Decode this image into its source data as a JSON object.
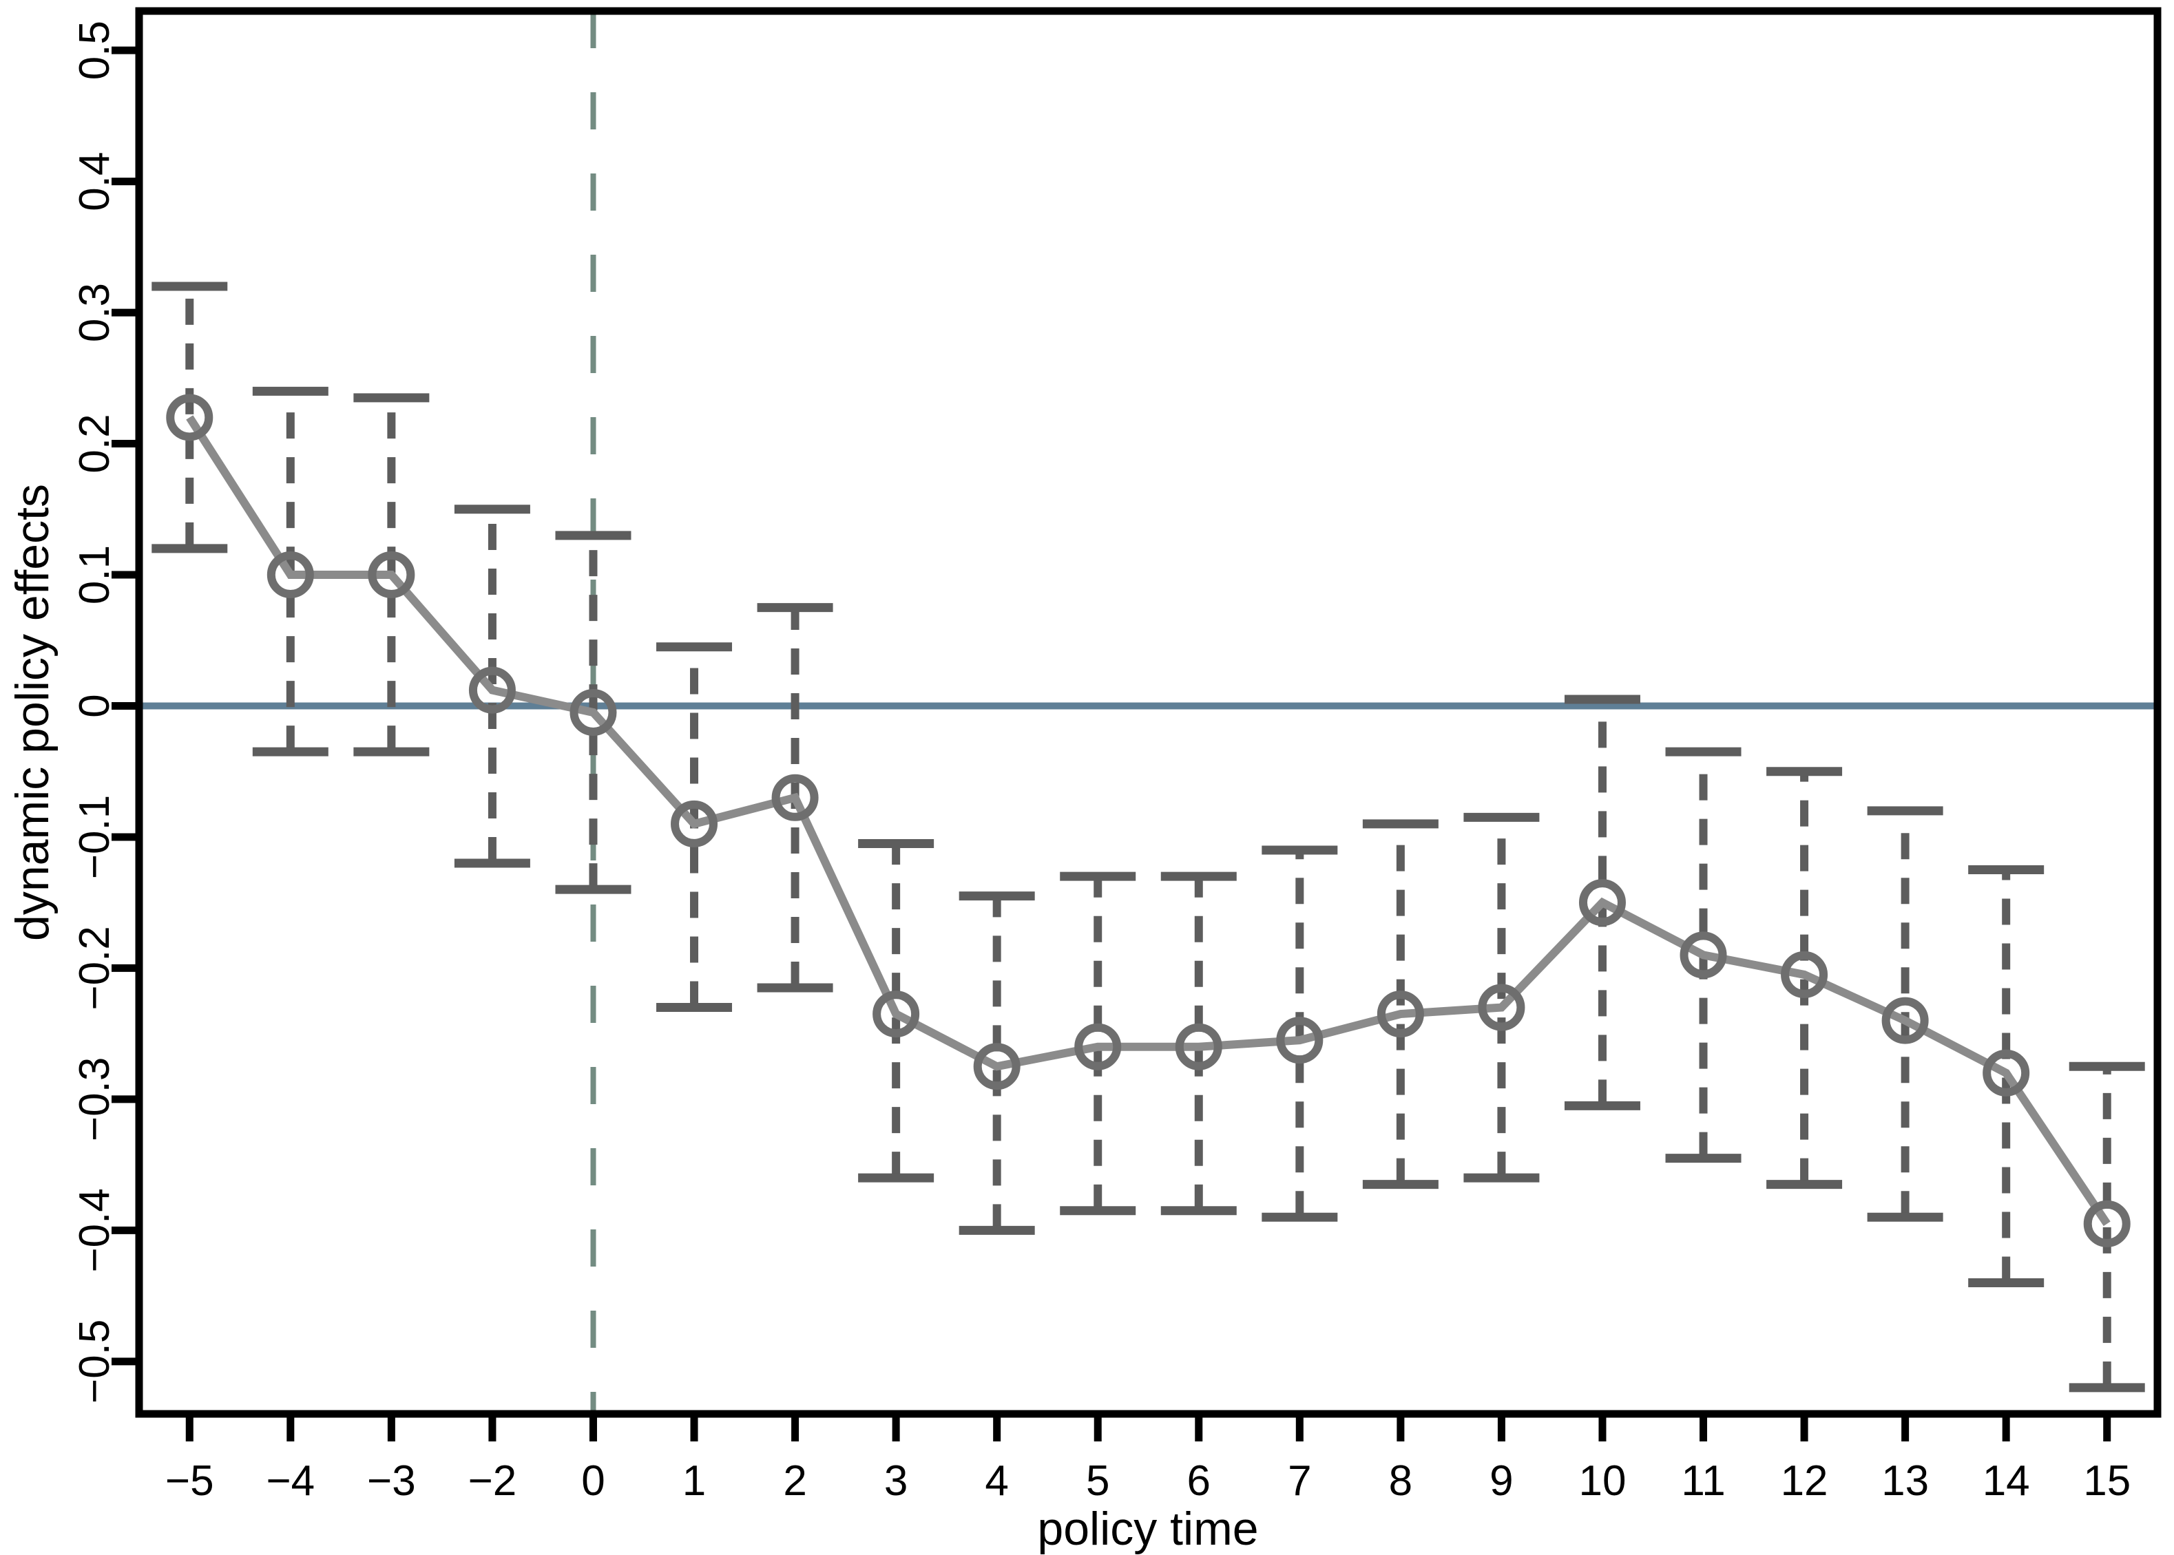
{
  "figure": {
    "background": "#ffffff"
  },
  "chart_data": {
    "type": "line",
    "title": "",
    "xlabel": "policy time",
    "ylabel": "dynamic policy effects",
    "legend": "none",
    "grid": "off",
    "marker": "open-circle",
    "error_bar_style": "dashed-with-solid-caps",
    "x_tick_labels": [
      "−5",
      "−4",
      "−3",
      "−2",
      "0",
      "1",
      "2",
      "3",
      "4",
      "5",
      "6",
      "7",
      "8",
      "9",
      "10",
      "11",
      "12",
      "13",
      "14",
      "15"
    ],
    "y_tick_labels": [
      "0.5",
      "0.4",
      "0.3",
      "0.2",
      "0.1",
      "0",
      "−0.1",
      "−0.2",
      "−0.3",
      "−0.4",
      "−0.5"
    ],
    "y_tick_values": [
      0.5,
      0.4,
      0.3,
      0.2,
      0.1,
      0,
      -0.1,
      -0.2,
      -0.3,
      -0.4,
      -0.5
    ],
    "ylim": [
      -0.54,
      0.53
    ],
    "reference_lines": {
      "horizontal_zero_line": {
        "y": 0,
        "color": "#5f7f96",
        "style": "solid"
      },
      "vertical_event_line": {
        "x_label": "0",
        "color": "#738c82",
        "style": "dashed"
      }
    },
    "colors": {
      "series_line": "#8b8b8b",
      "marker_stroke": "#6e6e6e",
      "error_bar": "#5d5d5d",
      "zero_line": "#5f7f96",
      "event_line": "#738c82",
      "axis": "#000000"
    },
    "series": [
      {
        "name": "dynamic policy effects",
        "points": [
          {
            "t": "−5",
            "effect": 0.22,
            "ci_low": 0.12,
            "ci_high": 0.32
          },
          {
            "t": "−4",
            "effect": 0.1,
            "ci_low": -0.035,
            "ci_high": 0.24
          },
          {
            "t": "−3",
            "effect": 0.1,
            "ci_low": -0.035,
            "ci_high": 0.235
          },
          {
            "t": "−2",
            "effect": 0.012,
            "ci_low": -0.12,
            "ci_high": 0.15
          },
          {
            "t": "0",
            "effect": -0.005,
            "ci_low": -0.14,
            "ci_high": 0.13
          },
          {
            "t": "1",
            "effect": -0.09,
            "ci_low": -0.23,
            "ci_high": 0.045
          },
          {
            "t": "2",
            "effect": -0.07,
            "ci_low": -0.215,
            "ci_high": 0.075
          },
          {
            "t": "3",
            "effect": -0.235,
            "ci_low": -0.36,
            "ci_high": -0.105
          },
          {
            "t": "4",
            "effect": -0.275,
            "ci_low": -0.4,
            "ci_high": -0.145
          },
          {
            "t": "5",
            "effect": -0.26,
            "ci_low": -0.385,
            "ci_high": -0.13
          },
          {
            "t": "6",
            "effect": -0.26,
            "ci_low": -0.385,
            "ci_high": -0.13
          },
          {
            "t": "7",
            "effect": -0.255,
            "ci_low": -0.39,
            "ci_high": -0.11
          },
          {
            "t": "8",
            "effect": -0.235,
            "ci_low": -0.365,
            "ci_high": -0.09
          },
          {
            "t": "9",
            "effect": -0.23,
            "ci_low": -0.36,
            "ci_high": -0.085
          },
          {
            "t": "10",
            "effect": -0.15,
            "ci_low": -0.305,
            "ci_high": 0.005
          },
          {
            "t": "11",
            "effect": -0.19,
            "ci_low": -0.345,
            "ci_high": -0.035
          },
          {
            "t": "12",
            "effect": -0.205,
            "ci_low": -0.365,
            "ci_high": -0.05
          },
          {
            "t": "13",
            "effect": -0.24,
            "ci_low": -0.39,
            "ci_high": -0.08
          },
          {
            "t": "14",
            "effect": -0.28,
            "ci_low": -0.44,
            "ci_high": -0.125
          },
          {
            "t": "15",
            "effect": -0.395,
            "ci_low": -0.52,
            "ci_high": -0.275
          }
        ]
      }
    ]
  }
}
